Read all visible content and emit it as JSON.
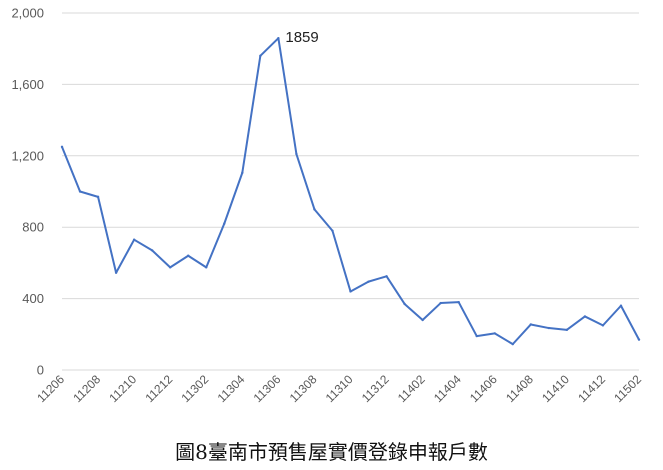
{
  "caption": "圖8臺南市預售屋實價登錄申報戶數",
  "colors": {
    "line": "#4472c4",
    "grid": "#d9d9d9",
    "tick_text": "#595959"
  },
  "chart_data": {
    "type": "line",
    "title": "",
    "xlabel": "",
    "ylabel": "",
    "ylim": [
      0,
      2000
    ],
    "yticks": [
      0,
      400,
      800,
      1200,
      1600,
      2000
    ],
    "ytick_labels": [
      "0",
      "400",
      "800",
      "1,200",
      "1,600",
      "2,000"
    ],
    "grid": true,
    "legend": "none",
    "x": [
      "11206",
      "11207",
      "11208",
      "11209",
      "11210",
      "11211",
      "11212",
      "11301",
      "11302",
      "11303",
      "11304",
      "11305",
      "11306",
      "11307",
      "11308",
      "11309",
      "11310",
      "11311",
      "11312",
      "11401",
      "11402",
      "11403",
      "11404",
      "11405",
      "11406",
      "11407",
      "11408",
      "11409",
      "11410",
      "11411",
      "11412",
      "11501",
      "11502"
    ],
    "xtick_labels": [
      "11206",
      "11208",
      "11210",
      "11212",
      "11302",
      "11304",
      "11306",
      "11308",
      "11310",
      "11312",
      "11402",
      "11404",
      "11406",
      "11408",
      "11410",
      "11412",
      "11502"
    ],
    "series": [
      {
        "values": [
          1250,
          1000,
          970,
          545,
          730,
          670,
          575,
          640,
          575,
          820,
          1105,
          1760,
          1859,
          1210,
          900,
          780,
          440,
          495,
          525,
          370,
          280,
          375,
          380,
          190,
          205,
          145,
          255,
          235,
          225,
          300,
          250,
          360,
          170
        ]
      }
    ],
    "annotations": [
      {
        "x": "11306",
        "text": "1859"
      }
    ]
  }
}
